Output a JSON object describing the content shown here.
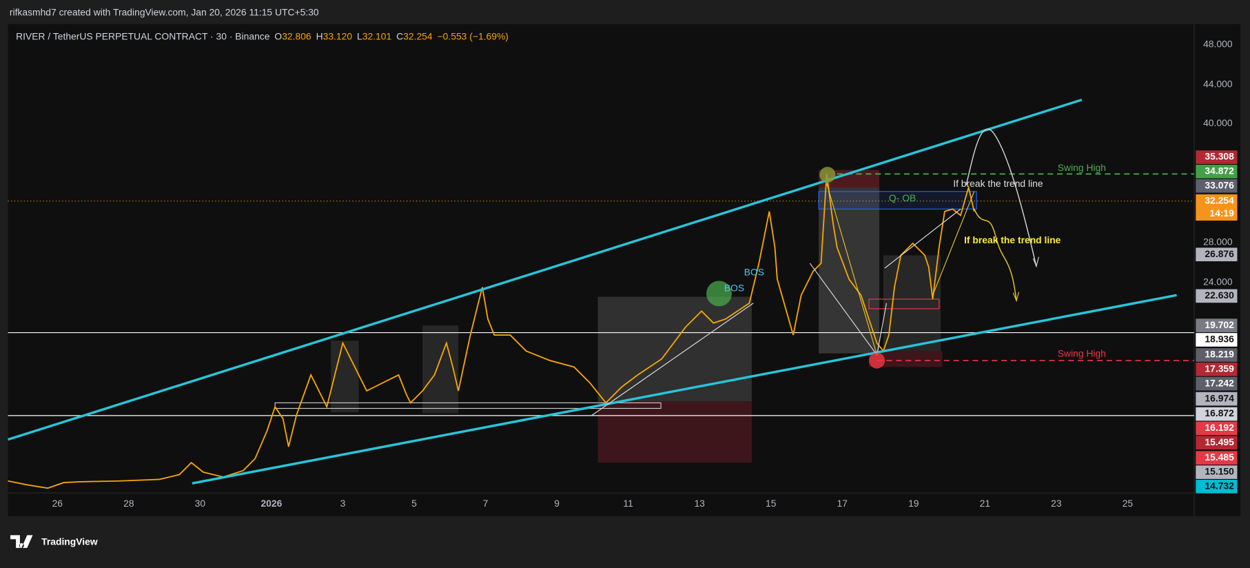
{
  "header": {
    "text": "rifkasmhd7 created with TradingView.com, Jan 20, 2026 11:15 UTC+5:30"
  },
  "legend": {
    "symbol": "RIVER / TetherUS PERPETUAL CONTRACT · 30 · Binance",
    "open": {
      "key": "O",
      "value": "32.806"
    },
    "high": {
      "key": "H",
      "value": "33.120"
    },
    "low": {
      "key": "L",
      "value": "32.101"
    },
    "close": {
      "key": "C",
      "value": "32.254"
    },
    "change": "−0.553 (−1.69%)"
  },
  "price_scale": {
    "ticks": [
      "48.000",
      "44.000",
      "40.000",
      "28.000",
      "24.000"
    ],
    "labels": [
      "35.308",
      "34.872",
      "33.076",
      "32.254",
      "14:19",
      "26.876",
      "22.630",
      "19.702",
      "18.936",
      "18.219",
      "17.359",
      "17.242",
      "16.974",
      "16.872",
      "16.192",
      "15.495",
      "15.485",
      "15.150",
      "14.732"
    ]
  },
  "time_scale": {
    "labels": [
      "26",
      "28",
      "30",
      "2026",
      "3",
      "5",
      "7",
      "9",
      "11",
      "13",
      "15",
      "17",
      "19",
      "21",
      "23",
      "25"
    ]
  },
  "annotations": {
    "swing_high_top": "Swing High",
    "break_note_white": "If break the trend line",
    "order_block": "Q- OB",
    "break_note_yellow": "If break the trend line",
    "swing_high_bottom": "Swing High",
    "bos_1": "BOS",
    "bos_2": "BOS"
  },
  "footer": {
    "logo": "TradingView"
  }
}
